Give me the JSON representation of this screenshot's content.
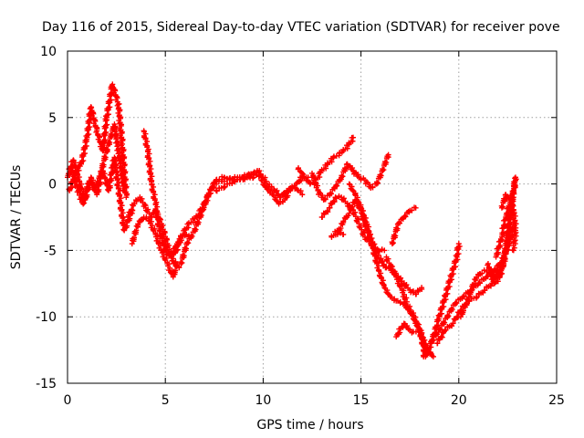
{
  "chart_data": {
    "type": "scatter",
    "title": "Day 116 of 2015, Sidereal Day-to-day VTEC variation (SDTVAR) for receiver pove",
    "xlabel": "GPS time / hours",
    "ylabel": "SDTVAR / TECUs",
    "xlim": [
      0,
      25
    ],
    "ylim": [
      -15,
      10
    ],
    "xticks": [
      "0",
      "5",
      "10",
      "15",
      "20",
      "25"
    ],
    "yticks": [
      "10",
      "5",
      "0",
      "-5",
      "-10",
      "-15"
    ],
    "grid": true,
    "marker": "plus",
    "color": "#ff0000",
    "series": [
      {
        "points": [
          [
            0,
            0.5
          ],
          [
            0.3,
            1.8
          ],
          [
            0.6,
            0.2
          ],
          [
            0.9,
            -1.2
          ],
          [
            1.2,
            0.5
          ],
          [
            1.5,
            -0.8
          ],
          [
            1.8,
            1.0
          ],
          [
            2.1,
            -0.5
          ],
          [
            2.4,
            2.0
          ],
          [
            2.6,
            -0.3
          ],
          [
            2.9,
            -3.5
          ],
          [
            3.3,
            -2.0
          ]
        ]
      },
      {
        "points": [
          [
            0.1,
            -0.5
          ],
          [
            0.4,
            0.8
          ],
          [
            0.7,
            1.5
          ],
          [
            1.0,
            3.5
          ],
          [
            1.2,
            5.8
          ],
          [
            1.5,
            4.0
          ],
          [
            1.8,
            2.5
          ],
          [
            2.0,
            5.0
          ],
          [
            2.3,
            7.5
          ],
          [
            2.6,
            6.0
          ],
          [
            2.8,
            3.0
          ],
          [
            3.0,
            -1.0
          ]
        ]
      },
      {
        "points": [
          [
            0.2,
            1.2
          ],
          [
            0.5,
            -0.3
          ],
          [
            0.8,
            -1.5
          ],
          [
            1.1,
            0.2
          ],
          [
            1.4,
            -0.5
          ],
          [
            1.7,
            0.8
          ],
          [
            2.0,
            2.5
          ],
          [
            2.4,
            4.5
          ],
          [
            2.7,
            1.5
          ],
          [
            2.9,
            -0.5
          ]
        ]
      },
      {
        "points": [
          [
            3.1,
            -2.5
          ],
          [
            3.4,
            -1.5
          ],
          [
            3.7,
            -1.0
          ],
          [
            4.0,
            -1.8
          ],
          [
            4.3,
            -2.5
          ],
          [
            4.5,
            -2.0
          ],
          [
            4.8,
            -3.0
          ],
          [
            5.1,
            -4.5
          ],
          [
            5.4,
            -5.8
          ],
          [
            5.7,
            -6.3
          ]
        ]
      },
      {
        "points": [
          [
            3.3,
            -4.5
          ],
          [
            3.6,
            -3.0
          ],
          [
            3.9,
            -2.5
          ],
          [
            4.2,
            -2.8
          ],
          [
            4.5,
            -3.8
          ],
          [
            4.8,
            -5.0
          ],
          [
            5.1,
            -6.0
          ],
          [
            5.4,
            -7.0
          ],
          [
            5.6,
            -6.0
          ]
        ]
      },
      {
        "points": [
          [
            3.9,
            4.0
          ],
          [
            4.1,
            2.5
          ],
          [
            4.3,
            0.0
          ],
          [
            4.5,
            -1.5
          ],
          [
            4.7,
            -3.5
          ],
          [
            5.0,
            -5.0
          ],
          [
            5.3,
            -5.5
          ],
          [
            5.6,
            -4.5
          ],
          [
            6.0,
            -3.8
          ],
          [
            6.3,
            -4.0
          ]
        ]
      },
      {
        "points": [
          [
            5.5,
            -5.2
          ],
          [
            5.8,
            -4.0
          ],
          [
            6.2,
            -3.0
          ],
          [
            6.6,
            -2.5
          ],
          [
            7.0,
            -1.5
          ],
          [
            7.3,
            -0.5
          ],
          [
            7.6,
            0.3
          ],
          [
            8.0,
            0.5
          ],
          [
            8.5,
            0.3
          ],
          [
            9.0,
            0.5
          ],
          [
            9.5,
            0.8
          ],
          [
            9.8,
            0.6
          ]
        ]
      },
      {
        "points": [
          [
            5.8,
            -6.0
          ],
          [
            6.1,
            -4.5
          ],
          [
            6.5,
            -3.5
          ],
          [
            6.9,
            -2.0
          ],
          [
            7.2,
            -0.8
          ],
          [
            7.5,
            0.0
          ],
          [
            7.9,
            0.2
          ],
          [
            8.3,
            0.4
          ],
          [
            8.8,
            0.5
          ],
          [
            9.3,
            0.7
          ],
          [
            9.7,
            0.9
          ]
        ]
      },
      {
        "points": [
          [
            7.6,
            -0.5
          ],
          [
            8.0,
            -0.2
          ],
          [
            8.5,
            0.2
          ],
          [
            9.0,
            0.4
          ],
          [
            9.5,
            0.5
          ]
        ]
      },
      {
        "points": [
          [
            9.7,
            1.0
          ],
          [
            10.0,
            0.5
          ],
          [
            10.3,
            -0.2
          ],
          [
            10.6,
            -0.5
          ],
          [
            10.9,
            -1.0
          ],
          [
            11.2,
            -0.5
          ],
          [
            11.5,
            -0.3
          ],
          [
            11.8,
            -0.5
          ],
          [
            12.0,
            -0.8
          ]
        ]
      },
      {
        "points": [
          [
            9.9,
            0.3
          ],
          [
            10.2,
            -0.4
          ],
          [
            10.5,
            -0.8
          ],
          [
            10.8,
            -1.5
          ],
          [
            11.1,
            -1.2
          ],
          [
            11.4,
            -0.3
          ],
          [
            11.7,
            0.0
          ],
          [
            12.0,
            0.5
          ],
          [
            12.3,
            0.5
          ]
        ]
      },
      {
        "points": [
          [
            11.8,
            1.2
          ],
          [
            12.1,
            0.5
          ],
          [
            12.4,
            0.0
          ],
          [
            12.7,
            0.3
          ],
          [
            13.0,
            1.0
          ],
          [
            13.3,
            1.5
          ],
          [
            13.6,
            2.0
          ],
          [
            13.9,
            2.3
          ],
          [
            14.1,
            2.5
          ],
          [
            14.4,
            3.0
          ],
          [
            14.6,
            3.5
          ]
        ]
      },
      {
        "points": [
          [
            12.5,
            0.8
          ],
          [
            12.8,
            -0.5
          ],
          [
            13.1,
            -1.2
          ],
          [
            13.4,
            -0.8
          ],
          [
            13.7,
            -0.2
          ],
          [
            14.0,
            0.5
          ],
          [
            14.3,
            1.5
          ],
          [
            14.6,
            1.0
          ],
          [
            14.9,
            0.5
          ],
          [
            15.2,
            0.3
          ],
          [
            15.5,
            -0.3
          ],
          [
            15.8,
            0.0
          ],
          [
            16.1,
            1.0
          ],
          [
            16.4,
            2.2
          ]
        ]
      },
      {
        "points": [
          [
            13.0,
            -2.5
          ],
          [
            13.4,
            -1.8
          ],
          [
            13.7,
            -1.0
          ],
          [
            14.0,
            -1.0
          ],
          [
            14.3,
            -1.5
          ],
          [
            14.6,
            -2.0
          ],
          [
            14.9,
            -3.0
          ],
          [
            15.2,
            -4.0
          ],
          [
            15.5,
            -4.5
          ],
          [
            15.9,
            -5.0
          ],
          [
            16.2,
            -5.0
          ]
        ]
      },
      {
        "points": [
          [
            13.8,
            -3.8
          ],
          [
            14.1,
            -2.8
          ],
          [
            14.4,
            -2.2
          ],
          [
            14.7,
            -1.2
          ],
          [
            15.0,
            -2.0
          ],
          [
            15.3,
            -3.5
          ],
          [
            15.6,
            -4.5
          ],
          [
            16.0,
            -5.8
          ],
          [
            16.3,
            -6.3
          ],
          [
            16.6,
            -6.5
          ]
        ]
      },
      {
        "points": [
          [
            14.4,
            0.0
          ],
          [
            14.7,
            -0.8
          ],
          [
            15.0,
            -1.8
          ],
          [
            15.3,
            -3.0
          ],
          [
            15.6,
            -4.8
          ],
          [
            15.9,
            -6.5
          ],
          [
            16.2,
            -7.8
          ],
          [
            16.5,
            -8.5
          ],
          [
            16.8,
            -8.8
          ],
          [
            17.2,
            -9.0
          ],
          [
            17.6,
            -9.8
          ],
          [
            18.0,
            -11.0
          ],
          [
            18.3,
            -13.0
          ]
        ]
      },
      {
        "points": [
          [
            13.5,
            -4.0
          ],
          [
            13.8,
            -3.5
          ],
          [
            14.1,
            -3.8
          ]
        ]
      },
      {
        "points": [
          [
            16.6,
            -4.5
          ],
          [
            16.9,
            -3.0
          ],
          [
            17.2,
            -2.5
          ],
          [
            17.5,
            -2.0
          ],
          [
            17.8,
            -1.8
          ]
        ]
      },
      {
        "points": [
          [
            16.3,
            -5.5
          ],
          [
            16.6,
            -6.5
          ],
          [
            16.9,
            -7.0
          ],
          [
            17.2,
            -7.5
          ],
          [
            17.5,
            -8.0
          ],
          [
            17.8,
            -8.3
          ],
          [
            18.1,
            -7.8
          ]
        ]
      },
      {
        "points": [
          [
            16.5,
            -6.2
          ],
          [
            16.8,
            -7.0
          ],
          [
            17.1,
            -8.0
          ],
          [
            17.4,
            -9.2
          ],
          [
            17.7,
            -10.0
          ],
          [
            18.0,
            -11.0
          ],
          [
            18.3,
            -12.5
          ],
          [
            18.6,
            -12.8
          ]
        ]
      },
      {
        "points": [
          [
            16.8,
            -11.5
          ],
          [
            17.2,
            -10.5
          ],
          [
            17.6,
            -11.2
          ],
          [
            18.0,
            -11.0
          ],
          [
            18.4,
            -12.5
          ],
          [
            18.7,
            -13.0
          ]
        ]
      },
      {
        "points": [
          [
            18.2,
            -13.0
          ],
          [
            18.6,
            -12.0
          ],
          [
            19.0,
            -10.0
          ],
          [
            19.3,
            -8.5
          ],
          [
            19.6,
            -7.0
          ],
          [
            19.9,
            -5.5
          ],
          [
            20.0,
            -4.5
          ]
        ]
      },
      {
        "points": [
          [
            18.6,
            -11.8
          ],
          [
            19.0,
            -11.0
          ],
          [
            19.4,
            -10.0
          ],
          [
            19.8,
            -9.0
          ],
          [
            20.2,
            -8.5
          ],
          [
            20.6,
            -8.0
          ],
          [
            21.0,
            -7.5
          ],
          [
            21.4,
            -7.0
          ],
          [
            21.8,
            -6.5
          ],
          [
            22.1,
            -6.0
          ]
        ]
      },
      {
        "points": [
          [
            18.9,
            -12.0
          ],
          [
            19.3,
            -11.0
          ],
          [
            19.7,
            -10.5
          ],
          [
            20.1,
            -9.5
          ],
          [
            20.5,
            -8.8
          ],
          [
            20.9,
            -8.5
          ],
          [
            21.3,
            -8.0
          ],
          [
            21.7,
            -7.5
          ],
          [
            22.0,
            -6.5
          ],
          [
            22.3,
            -5.5
          ],
          [
            22.6,
            -4.5
          ],
          [
            22.8,
            -3.0
          ]
        ]
      },
      {
        "points": [
          [
            20.1,
            -10.0
          ],
          [
            20.5,
            -8.5
          ],
          [
            20.9,
            -7.0
          ],
          [
            21.3,
            -6.5
          ],
          [
            21.6,
            -6.8
          ],
          [
            22.0,
            -7.0
          ],
          [
            22.3,
            -6.0
          ],
          [
            22.5,
            -4.0
          ],
          [
            22.7,
            -1.5
          ],
          [
            22.9,
            0.5
          ]
        ]
      },
      {
        "points": [
          [
            21.9,
            -5.5
          ],
          [
            22.2,
            -4.0
          ],
          [
            22.4,
            -2.5
          ],
          [
            22.6,
            -1.5
          ],
          [
            22.8,
            -0.5
          ],
          [
            22.9,
            0.3
          ]
        ]
      },
      {
        "points": [
          [
            21.5,
            -6.0
          ],
          [
            21.8,
            -7.5
          ],
          [
            22.1,
            -7.0
          ],
          [
            22.4,
            -5.0
          ],
          [
            22.6,
            -2.5
          ],
          [
            22.8,
            -1.0
          ]
        ]
      },
      {
        "points": [
          [
            22.2,
            -1.8
          ],
          [
            22.4,
            -0.8
          ],
          [
            22.6,
            -1.2
          ],
          [
            22.8,
            -2.0
          ],
          [
            22.9,
            -3.5
          ],
          [
            22.8,
            -5.0
          ]
        ]
      }
    ]
  }
}
